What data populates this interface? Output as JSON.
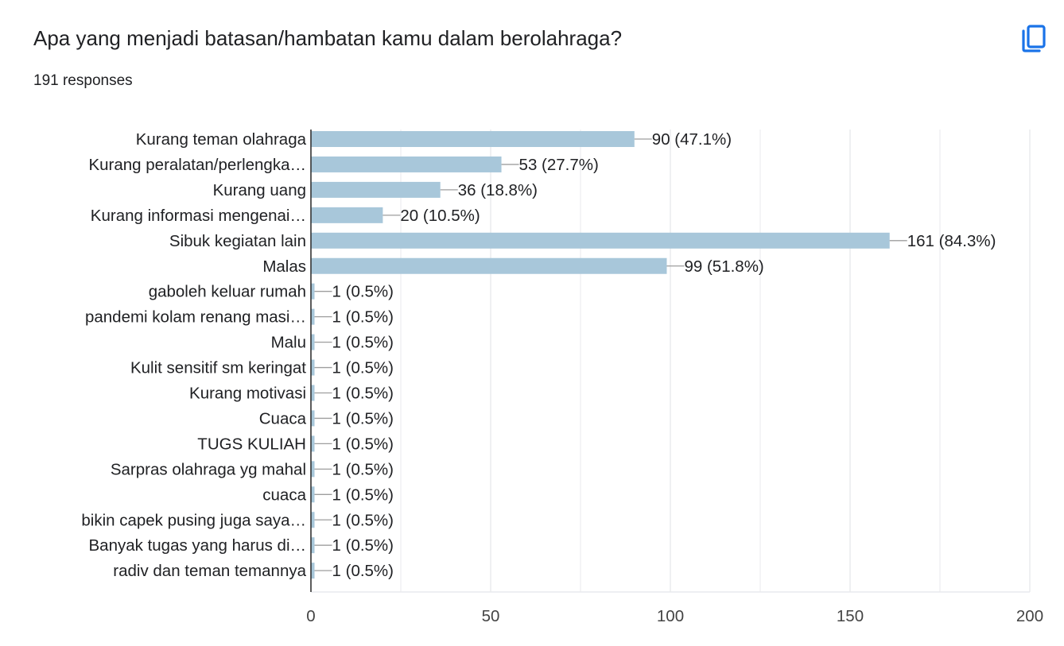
{
  "question": {
    "title": "Apa yang menjadi batasan/hambatan kamu dalam berolahraga?",
    "response_count": "191 responses"
  },
  "toolbar": {
    "copy_icon": "copy-icon",
    "accent_color": "#1a73e8"
  },
  "chart_data": {
    "type": "bar",
    "orientation": "horizontal",
    "categories": [
      "Kurang teman olahraga",
      "Kurang peralatan/perlengka…",
      "Kurang uang",
      "Kurang informasi mengenai…",
      "Sibuk kegiatan lain",
      "Malas",
      "gaboleh keluar rumah",
      "pandemi kolam renang masi…",
      "Malu",
      "Kulit sensitif sm keringat",
      "Kurang motivasi",
      "Cuaca",
      "TUGS KULIAH",
      "Sarpras olahraga yg mahal",
      "cuaca",
      "bikin capek pusing juga saya…",
      "Banyak tugas yang harus di…",
      "radiv dan teman temannya"
    ],
    "values": [
      90,
      53,
      36,
      20,
      161,
      99,
      1,
      1,
      1,
      1,
      1,
      1,
      1,
      1,
      1,
      1,
      1,
      1
    ],
    "data_labels": [
      "90 (47.1%)",
      "53 (27.7%)",
      "36 (18.8%)",
      "20 (10.5%)",
      "161 (84.3%)",
      "99 (51.8%)",
      "1 (0.5%)",
      "1 (0.5%)",
      "1 (0.5%)",
      "1 (0.5%)",
      "1 (0.5%)",
      "1 (0.5%)",
      "1 (0.5%)",
      "1 (0.5%)",
      "1 (0.5%)",
      "1 (0.5%)",
      "1 (0.5%)",
      "1 (0.5%)"
    ],
    "xlim": [
      0,
      200
    ],
    "xticks": [
      0,
      50,
      100,
      150,
      200
    ],
    "xtick_labels": [
      "0",
      "50",
      "100",
      "150",
      "200"
    ],
    "grid": true,
    "bar_color": "#a8c7da",
    "grid_color": "#e8eaed",
    "axis_color": "#333333",
    "leader_color": "#9e9e9e"
  }
}
